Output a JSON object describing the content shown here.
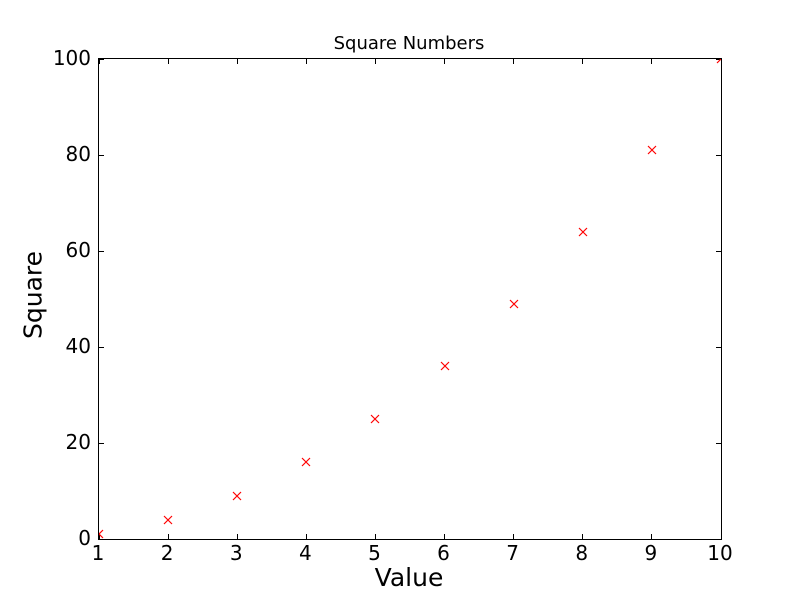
{
  "chart_data": {
    "type": "scatter",
    "title": "Square Numbers",
    "xlabel": "Value",
    "ylabel": "Square",
    "x": [
      1,
      2,
      3,
      4,
      5,
      6,
      7,
      8,
      9,
      10
    ],
    "y": [
      1,
      4,
      9,
      16,
      25,
      36,
      49,
      64,
      81,
      100
    ],
    "xlim": [
      1,
      10
    ],
    "ylim": [
      0,
      100
    ],
    "xticks": [
      1,
      2,
      3,
      4,
      5,
      6,
      7,
      8,
      9,
      10
    ],
    "yticks": [
      0,
      20,
      40,
      60,
      80,
      100
    ],
    "xtick_labels": [
      "1",
      "2",
      "3",
      "4",
      "5",
      "6",
      "7",
      "8",
      "9",
      "10"
    ],
    "ytick_labels": [
      "0",
      "20",
      "40",
      "60",
      "80",
      "100"
    ],
    "marker": "x",
    "marker_color": "#ff0000",
    "axis_color": "#000000",
    "background_color": "#ffffff",
    "grid": "off",
    "legend": "none"
  }
}
